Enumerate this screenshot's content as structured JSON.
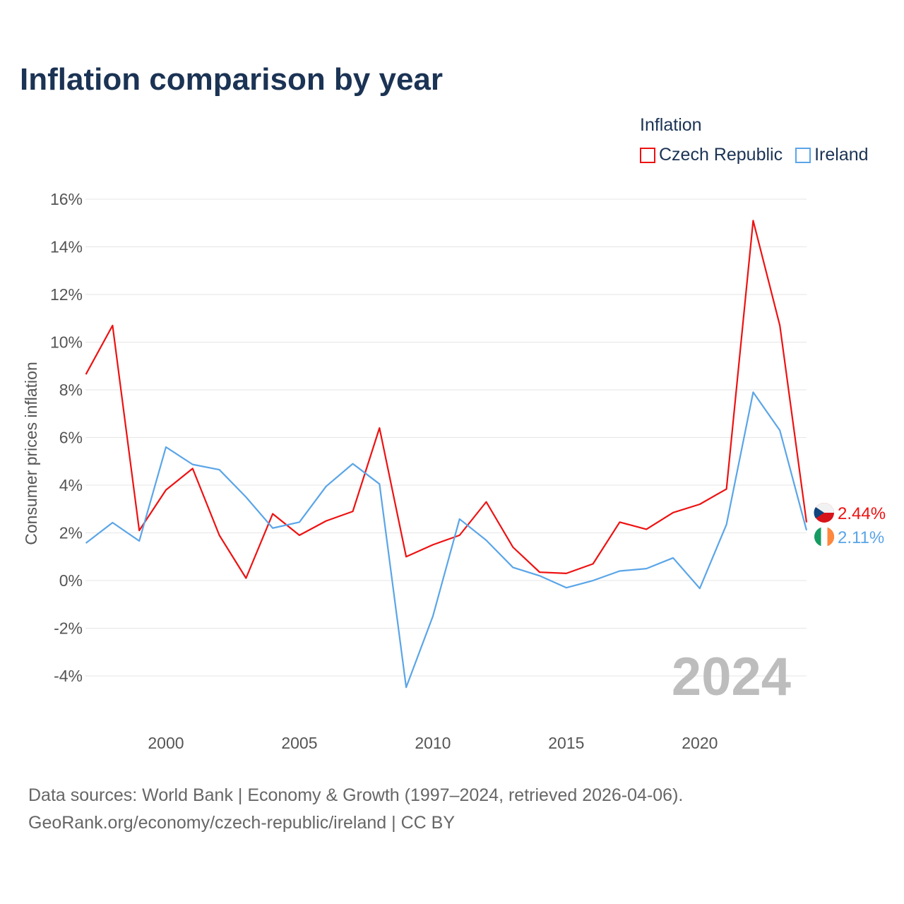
{
  "title": "Inflation comparison by year",
  "legend": {
    "title": "Inflation",
    "items": [
      {
        "label": "Czech Republic",
        "color": "#ee1111"
      },
      {
        "label": "Ireland",
        "color": "#5aa5e8"
      }
    ]
  },
  "footer": {
    "line1": "Data sources: World Bank | Economy & Growth (1997–2024, retrieved 2026-04-06).",
    "line2": "GeoRank.org/economy/czech-republic/ireland | CC BY"
  },
  "chart_data": {
    "type": "line",
    "title": "Inflation comparison by year",
    "xlabel": "",
    "ylabel": "Consumer prices inflation",
    "xlim": [
      1997,
      2024
    ],
    "ylim": [
      -5,
      16
    ],
    "yticks": [
      -4,
      -2,
      0,
      2,
      4,
      6,
      8,
      10,
      12,
      14,
      16
    ],
    "ytick_labels": [
      "-4%",
      "-2%",
      "0%",
      "2%",
      "4%",
      "6%",
      "8%",
      "10%",
      "12%",
      "14%",
      "16%"
    ],
    "xticks": [
      2000,
      2005,
      2010,
      2015,
      2020
    ],
    "xtick_labels": [
      "2000",
      "2005",
      "2010",
      "2015",
      "2020"
    ],
    "grid": true,
    "legend_position": "top-right",
    "annotation": "2024",
    "x": [
      1997,
      1998,
      1999,
      2000,
      2001,
      2002,
      2003,
      2004,
      2005,
      2006,
      2007,
      2008,
      2009,
      2010,
      2011,
      2012,
      2013,
      2014,
      2015,
      2016,
      2017,
      2018,
      2019,
      2020,
      2021,
      2022,
      2023,
      2024
    ],
    "series": [
      {
        "name": "Czech Republic",
        "color": "#ee1111",
        "end_label": "2.44%",
        "values": [
          8.65,
          10.7,
          2.1,
          3.8,
          4.7,
          1.9,
          0.1,
          2.8,
          1.9,
          2.5,
          2.9,
          6.4,
          1.0,
          1.5,
          1.9,
          3.3,
          1.4,
          0.35,
          0.3,
          0.7,
          2.45,
          2.15,
          2.85,
          3.2,
          3.84,
          15.1,
          10.7,
          2.44
        ]
      },
      {
        "name": "Ireland",
        "color": "#5aa5e8",
        "end_label": "2.11%",
        "values": [
          1.57,
          2.43,
          1.66,
          5.6,
          4.87,
          4.65,
          3.5,
          2.2,
          2.45,
          3.95,
          4.9,
          4.05,
          -4.48,
          -1.5,
          2.58,
          1.69,
          0.55,
          0.2,
          -0.3,
          0.0,
          0.4,
          0.5,
          0.95,
          -0.33,
          2.35,
          7.9,
          6.3,
          2.11
        ]
      }
    ]
  }
}
